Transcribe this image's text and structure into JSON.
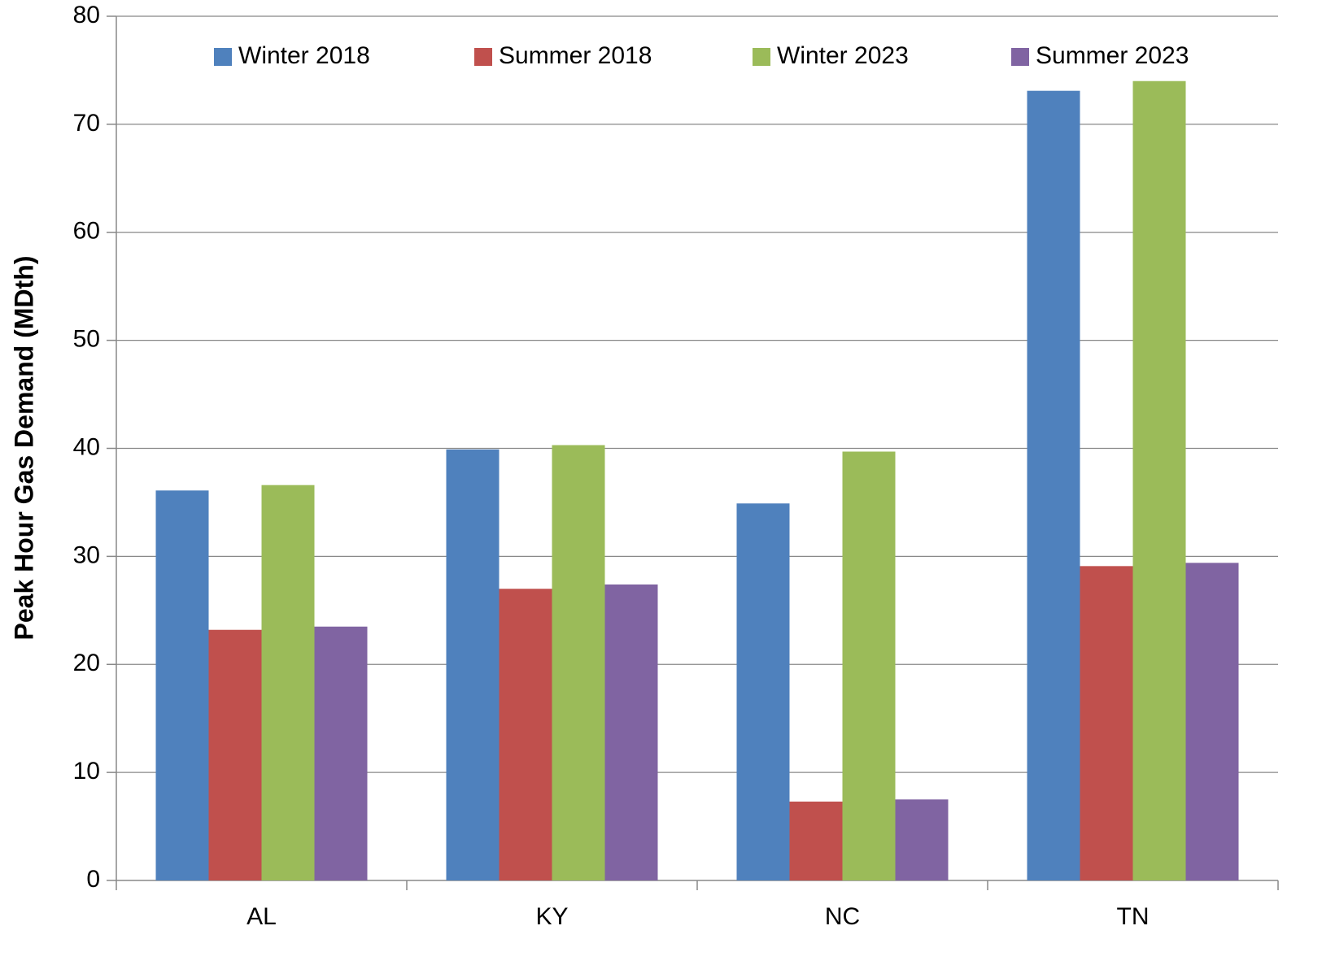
{
  "chart_data": {
    "type": "bar",
    "y_label": "Peak Hour Gas Demand (MDth)",
    "categories": [
      "AL",
      "KY",
      "NC",
      "TN"
    ],
    "series": [
      {
        "name": "Winter 2018",
        "color": "#4f81bd",
        "values": [
          36.1,
          39.9,
          34.9,
          73.1
        ]
      },
      {
        "name": "Summer 2018",
        "color": "#c0504d",
        "values": [
          23.2,
          27.0,
          7.3,
          29.1
        ]
      },
      {
        "name": "Winter 2023",
        "color": "#9bbb59",
        "values": [
          36.6,
          40.3,
          39.7,
          74.0
        ]
      },
      {
        "name": "Summer 2023",
        "color": "#8064a2",
        "values": [
          23.5,
          27.4,
          7.5,
          29.4
        ]
      }
    ],
    "ylim": [
      0,
      80
    ],
    "yticks": [
      0,
      10,
      20,
      30,
      40,
      50,
      60,
      70,
      80
    ],
    "grid": true,
    "legend": "top"
  }
}
